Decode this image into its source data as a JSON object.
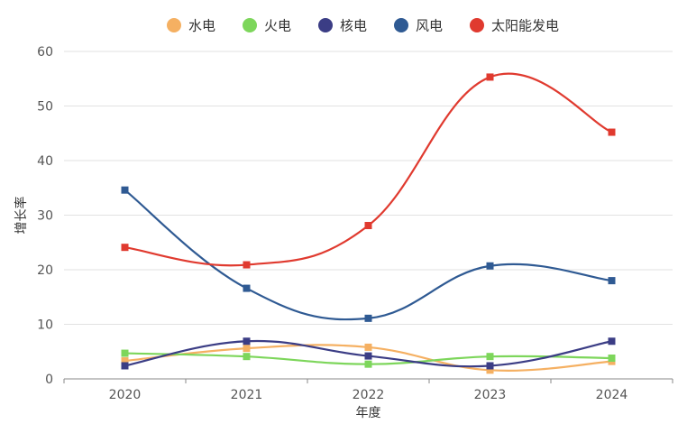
{
  "chart_data": {
    "type": "line",
    "title": "",
    "xlabel": "年度",
    "ylabel": "增长率",
    "categories": [
      "2020",
      "2021",
      "2022",
      "2023",
      "2024"
    ],
    "ylim": [
      0,
      60
    ],
    "yticks": [
      0,
      10,
      20,
      30,
      40,
      50,
      60
    ],
    "grid": true,
    "legend_position": "top-center",
    "smooth": true,
    "series": [
      {
        "name": "水电",
        "color": "#f5b062",
        "values": [
          3.3,
          5.6,
          5.8,
          1.6,
          3.2
        ]
      },
      {
        "name": "火电",
        "color": "#7dd65b",
        "values": [
          4.7,
          4.1,
          2.7,
          4.1,
          3.8
        ]
      },
      {
        "name": "核电",
        "color": "#3b3d85",
        "values": [
          2.4,
          6.9,
          4.2,
          2.4,
          6.9
        ]
      },
      {
        "name": "风电",
        "color": "#2f5a93",
        "values": [
          34.6,
          16.6,
          11.1,
          20.7,
          18.0
        ]
      },
      {
        "name": "太阳能发电",
        "color": "#e03a2f",
        "values": [
          24.1,
          20.9,
          28.1,
          55.3,
          45.2
        ]
      }
    ]
  }
}
